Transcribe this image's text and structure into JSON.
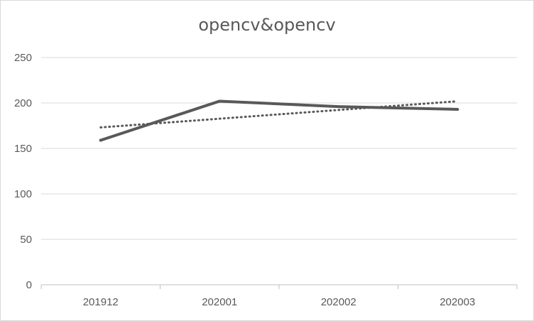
{
  "chart_data": {
    "type": "line",
    "title": "opencv&opencv",
    "categories": [
      "201912",
      "202001",
      "202002",
      "202003"
    ],
    "series": [
      {
        "values": [
          159,
          202,
          196,
          193
        ],
        "color": "#595959",
        "style": "solid"
      }
    ],
    "trendline": {
      "type": "linear",
      "color": "#595959",
      "style": "dotted"
    },
    "y_ticks": [
      "0",
      "50",
      "100",
      "150",
      "200",
      "250"
    ],
    "ylim": [
      0,
      250
    ],
    "ystep": 50,
    "grid": true,
    "legend": "none"
  }
}
